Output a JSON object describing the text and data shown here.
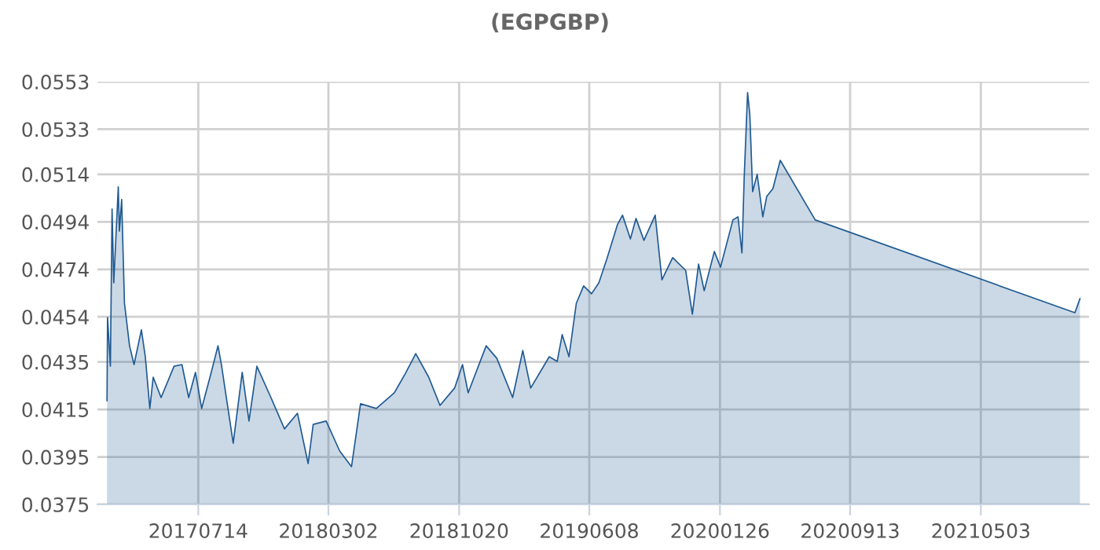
{
  "chart_data": {
    "type": "area",
    "title": "(EGPGBP)",
    "x": [
      "2017-02-02",
      "2017-02-03",
      "2017-02-08",
      "2017-02-11",
      "2017-02-14",
      "2017-02-22",
      "2017-02-24",
      "2017-02-28",
      "2017-03-05",
      "2017-03-14",
      "2017-03-22",
      "2017-04-04",
      "2017-04-11",
      "2017-04-19",
      "2017-04-25",
      "2017-05-09",
      "2017-06-01",
      "2017-06-15",
      "2017-06-27",
      "2017-07-09",
      "2017-07-20",
      "2017-08-06",
      "2017-08-18",
      "2017-08-24",
      "2017-09-14",
      "2017-09-30",
      "2017-10-12",
      "2017-10-26",
      "2017-11-20",
      "2017-12-14",
      "2018-01-06",
      "2018-01-25",
      "2018-02-03",
      "2018-02-26",
      "2018-03-22",
      "2018-04-12",
      "2018-04-28",
      "2018-05-26",
      "2018-06-27",
      "2018-07-16",
      "2018-08-04",
      "2018-08-27",
      "2018-09-16",
      "2018-10-12",
      "2018-10-26",
      "2018-11-05",
      "2018-12-07",
      "2018-12-26",
      "2019-01-23",
      "2019-02-10",
      "2019-02-24",
      "2019-03-29",
      "2019-04-12",
      "2019-04-21",
      "2019-05-03",
      "2019-05-16",
      "2019-05-29",
      "2019-06-12",
      "2019-06-25",
      "2019-07-09",
      "2019-07-28",
      "2019-08-06",
      "2019-08-20",
      "2019-08-30",
      "2019-09-13",
      "2019-10-03",
      "2019-10-15",
      "2019-11-03",
      "2019-11-26",
      "2019-12-08",
      "2019-12-19",
      "2019-12-29",
      "2020-01-16",
      "2020-01-27",
      "2020-02-18",
      "2020-02-27",
      "2020-03-05",
      "2020-03-09",
      "2020-03-15",
      "2020-03-19",
      "2020-03-24",
      "2020-04-01",
      "2020-04-11",
      "2020-04-18",
      "2020-04-29",
      "2020-05-12",
      "2020-07-13",
      "2021-10-17",
      "2021-10-22",
      "2021-10-26"
    ],
    "series": [
      {
        "color": "#1f5a93",
        "values": [
          0.04187,
          0.04537,
          0.04332,
          0.04994,
          0.04683,
          0.05087,
          0.04901,
          0.05034,
          0.04597,
          0.04418,
          0.04339,
          0.04485,
          0.04372,
          0.04154,
          0.04286,
          0.042,
          0.04332,
          0.04339,
          0.042,
          0.04306,
          0.04154,
          0.04306,
          0.04418,
          0.04339,
          0.04008,
          0.04306,
          0.04101,
          0.04332,
          0.042,
          0.04068,
          0.04134,
          0.03922,
          0.04087,
          0.04101,
          0.03975,
          0.03909,
          0.04174,
          0.04154,
          0.0422,
          0.04299,
          0.04385,
          0.04286,
          0.04167,
          0.0424,
          0.04339,
          0.0422,
          0.04418,
          0.04365,
          0.042,
          0.04398,
          0.0424,
          0.04372,
          0.04352,
          0.04465,
          0.04372,
          0.04597,
          0.0467,
          0.04637,
          0.04683,
          0.04782,
          0.04928,
          0.04968,
          0.04868,
          0.04954,
          0.04862,
          0.04968,
          0.04696,
          0.04789,
          0.04736,
          0.04551,
          0.04762,
          0.0465,
          0.04815,
          0.04749,
          0.04948,
          0.04961,
          0.04809,
          0.05126,
          0.05484,
          0.05391,
          0.05067,
          0.0514,
          0.04961,
          0.05047,
          0.0508,
          0.05199,
          0.04948,
          0.04557,
          0.0459,
          0.04617
        ]
      }
    ],
    "xlim": [
      "2017-01-16",
      "2021-11-11"
    ],
    "xticks": [
      {
        "value": "2017-07-14",
        "label": "20170714"
      },
      {
        "value": "2018-03-02",
        "label": "20180302"
      },
      {
        "value": "2018-10-20",
        "label": "20181020"
      },
      {
        "value": "2019-06-08",
        "label": "20190608"
      },
      {
        "value": "2020-01-26",
        "label": "20200126"
      },
      {
        "value": "2020-09-13",
        "label": "20200913"
      },
      {
        "value": "2021-05-03",
        "label": "20210503"
      }
    ],
    "ylim": [
      0.0375,
      0.0553
    ],
    "yticks": [
      0.0375,
      0.0395,
      0.0415,
      0.0435,
      0.0454,
      0.0474,
      0.0494,
      0.0514,
      0.0533,
      0.0553
    ],
    "grid": true
  }
}
